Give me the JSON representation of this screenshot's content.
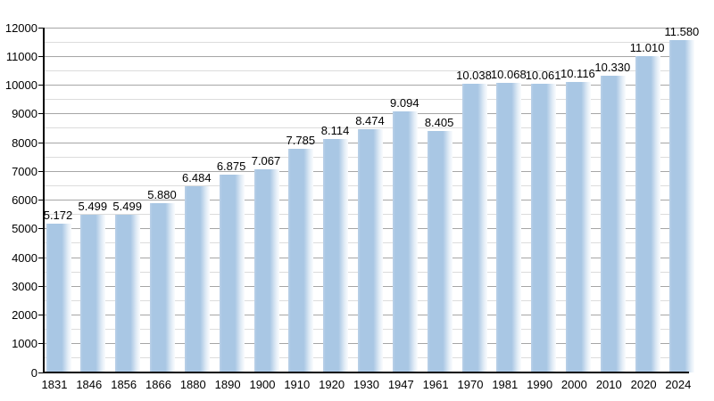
{
  "chart_data": {
    "type": "bar",
    "title": "",
    "xlabel": "",
    "ylabel": "",
    "categories": [
      "1831",
      "1846",
      "1856",
      "1866",
      "1880",
      "1890",
      "1900",
      "1910",
      "1920",
      "1930",
      "1947",
      "1961",
      "1970",
      "1981",
      "1990",
      "2000",
      "2010",
      "2020",
      "2024"
    ],
    "values": [
      5172,
      5499,
      5499,
      5880,
      6484,
      6875,
      7067,
      7785,
      8114,
      8474,
      9094,
      8405,
      10038,
      10068,
      10061,
      10116,
      10330,
      11010,
      11580
    ],
    "value_labels": [
      "5.172",
      "5.499",
      "5.499",
      "5.880",
      "6.484",
      "6.875",
      "7.067",
      "7.785",
      "8.114",
      "8.474",
      "9.094",
      "8.405",
      "10.038",
      "10.068",
      "10.061",
      "10.116",
      "10.330",
      "11.010",
      "11.580"
    ],
    "y_tick_labels": [
      "0",
      "1000",
      "2000",
      "3000",
      "4000",
      "5000",
      "6000",
      "7000",
      "8000",
      "9000",
      "10000",
      "11000",
      "12000"
    ],
    "ylim": [
      0,
      12000
    ],
    "y_major_step": 1000,
    "y_minor_step": 500,
    "grid": true,
    "legend_position": "none",
    "colors": {
      "bar_solid": "#a9c7e4",
      "bar_left_edge": "#bbd1e8",
      "bar_fade_end": "#fafcfe",
      "major_grid": "#a6a6a6",
      "minor_grid": "#dcdcdc",
      "axis": "#000000",
      "text": "#000000",
      "background": "#ffffff"
    }
  }
}
